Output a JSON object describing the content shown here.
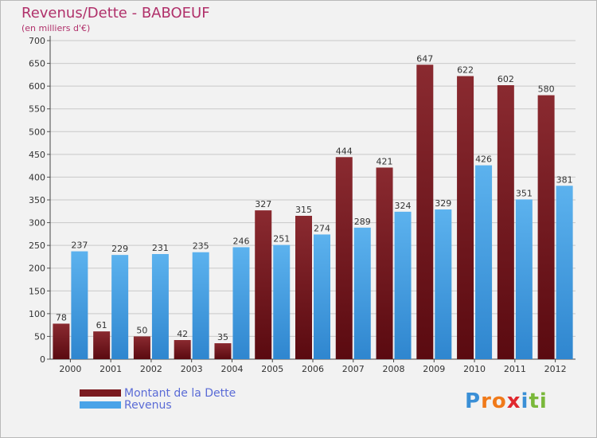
{
  "header": {
    "title": "Revenus/Dette - BABOEUF",
    "subtitle": "(en milliers d'€)"
  },
  "colors": {
    "dette": "#7a1a1f",
    "revenus": "#4aa3e8",
    "title": "#b0306a",
    "legend_text": "#5a6bd6",
    "background": "#f2f2f2"
  },
  "legend": {
    "dette_label": "Montant de la Dette",
    "revenus_label": "Revenus"
  },
  "logo": {
    "letters": [
      "P",
      "r",
      "o",
      "x",
      "i",
      "t",
      "i"
    ],
    "colors": [
      "#3a8fd6",
      "#f07a1a",
      "#f07a1a",
      "#e0282e",
      "#3a8fd6",
      "#7ab83a",
      "#7ab83a"
    ]
  },
  "chart_data": {
    "type": "bar",
    "title": "Revenus/Dette - BABOEUF",
    "ylabel": "(en milliers d'€)",
    "xlabel": "",
    "categories": [
      "2000",
      "2001",
      "2002",
      "2003",
      "2004",
      "2005",
      "2006",
      "2007",
      "2008",
      "2009",
      "2010",
      "2011",
      "2012"
    ],
    "series": [
      {
        "name": "Montant de la Dette",
        "values": [
          78,
          61,
          50,
          42,
          35,
          327,
          315,
          444,
          421,
          647,
          622,
          602,
          580
        ]
      },
      {
        "name": "Revenus",
        "values": [
          237,
          229,
          231,
          235,
          246,
          251,
          274,
          289,
          324,
          329,
          426,
          351,
          381
        ]
      }
    ],
    "ylim": [
      0,
      700
    ],
    "yticks": [
      0,
      50,
      100,
      150,
      200,
      250,
      300,
      350,
      400,
      450,
      500,
      550,
      600,
      650,
      700
    ],
    "grid": true,
    "legend_position": "bottom-left"
  }
}
